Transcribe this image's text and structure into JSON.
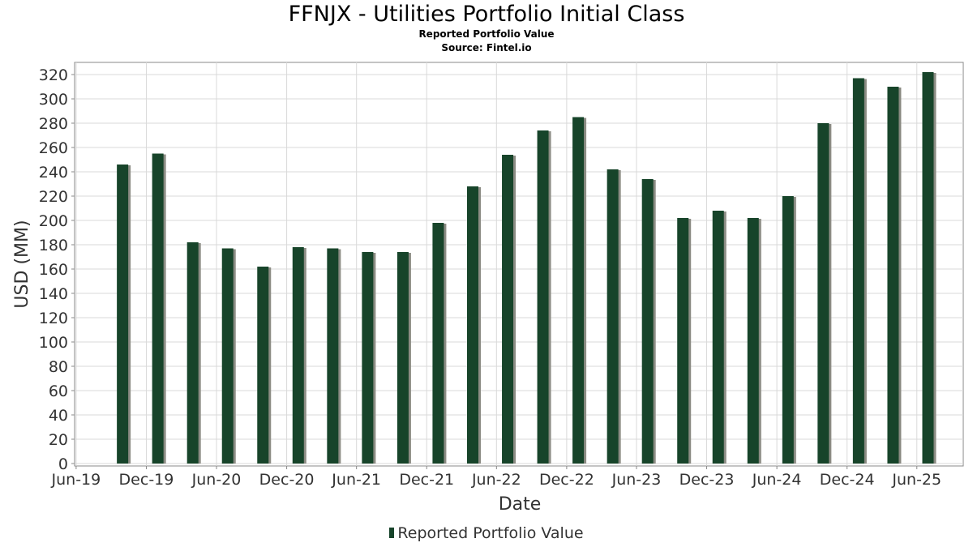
{
  "title": "FFNJX - Utilities Portfolio Initial Class",
  "subtitle": "Reported Portfolio Value",
  "source": "Source: Fintel.io",
  "legend_label": "Reported Portfolio Value",
  "colors": {
    "bar": "#17442a",
    "bar_shadow": "#8c8c84",
    "grid": "#d9d9d9",
    "axis": "#888888"
  },
  "chart_data": {
    "type": "bar",
    "title": "FFNJX - Utilities Portfolio Initial Class",
    "subtitle": "Reported Portfolio Value",
    "xlabel": "Date",
    "ylabel": "USD (MM)",
    "ylim": [
      0,
      330
    ],
    "yticks": [
      0,
      20,
      40,
      60,
      80,
      100,
      120,
      140,
      160,
      180,
      200,
      220,
      240,
      260,
      280,
      300,
      320
    ],
    "xlim": [
      "2019-05-28",
      "2025-09-30"
    ],
    "xticks": [
      {
        "label": "Jun-19",
        "date": "2019-06-01"
      },
      {
        "label": "Dec-19",
        "date": "2019-12-01"
      },
      {
        "label": "Jun-20",
        "date": "2020-06-01"
      },
      {
        "label": "Dec-20",
        "date": "2020-12-01"
      },
      {
        "label": "Jun-21",
        "date": "2021-06-01"
      },
      {
        "label": "Dec-21",
        "date": "2021-12-01"
      },
      {
        "label": "Jun-22",
        "date": "2022-06-01"
      },
      {
        "label": "Dec-22",
        "date": "2022-12-01"
      },
      {
        "label": "Jun-23",
        "date": "2023-06-01"
      },
      {
        "label": "Dec-23",
        "date": "2023-12-01"
      },
      {
        "label": "Jun-24",
        "date": "2024-06-01"
      },
      {
        "label": "Dec-24",
        "date": "2024-12-01"
      },
      {
        "label": "Jun-25",
        "date": "2025-06-01"
      }
    ],
    "grid": true,
    "legend": "bottom",
    "series": [
      {
        "name": "Reported Portfolio Value",
        "points": [
          {
            "x": "2019-09-30",
            "y": 246
          },
          {
            "x": "2019-12-31",
            "y": 255
          },
          {
            "x": "2020-03-31",
            "y": 182
          },
          {
            "x": "2020-06-30",
            "y": 177
          },
          {
            "x": "2020-09-30",
            "y": 162
          },
          {
            "x": "2020-12-31",
            "y": 178
          },
          {
            "x": "2021-03-31",
            "y": 177
          },
          {
            "x": "2021-06-30",
            "y": 174
          },
          {
            "x": "2021-09-30",
            "y": 174
          },
          {
            "x": "2021-12-31",
            "y": 198
          },
          {
            "x": "2022-03-31",
            "y": 228
          },
          {
            "x": "2022-06-30",
            "y": 254
          },
          {
            "x": "2022-09-30",
            "y": 274
          },
          {
            "x": "2022-12-31",
            "y": 285
          },
          {
            "x": "2023-03-31",
            "y": 242
          },
          {
            "x": "2023-06-30",
            "y": 234
          },
          {
            "x": "2023-09-30",
            "y": 202
          },
          {
            "x": "2023-12-31",
            "y": 208
          },
          {
            "x": "2024-03-31",
            "y": 202
          },
          {
            "x": "2024-06-30",
            "y": 220
          },
          {
            "x": "2024-09-30",
            "y": 280
          },
          {
            "x": "2024-12-31",
            "y": 317
          },
          {
            "x": "2025-03-31",
            "y": 310
          },
          {
            "x": "2025-06-30",
            "y": 322
          }
        ]
      }
    ]
  }
}
